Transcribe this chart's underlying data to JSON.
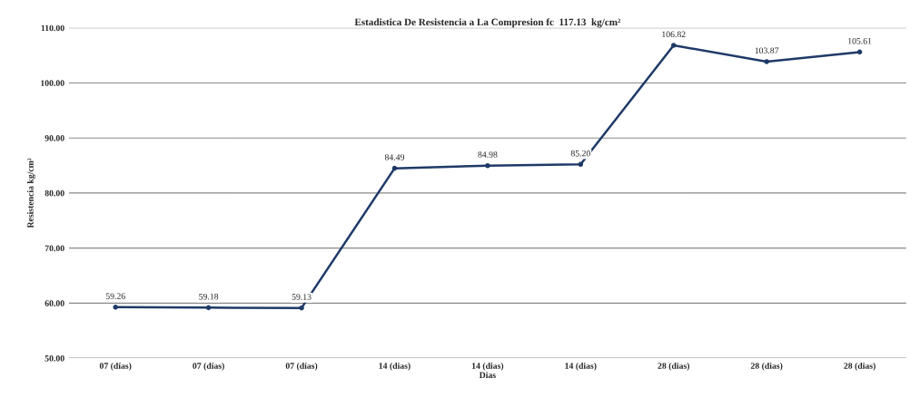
{
  "chart_data": {
    "type": "line",
    "title": "Estadistica De Resistencia a La Compresion fc  117.13  kg/cm²",
    "xlabel": "Dias",
    "ylabel": "Resistencia kg/cm²",
    "categories": [
      "07 (días)",
      "07 (días)",
      "07 (días)",
      "14 (dias)",
      "14 (dias)",
      "14 (dias)",
      "28 (dias)",
      "28 (dias)",
      "28 (dias)"
    ],
    "series": [
      {
        "color": "#1f3a68",
        "values": [
          59.26,
          59.18,
          59.13,
          84.49,
          84.98,
          85.2,
          106.82,
          103.87,
          105.61
        ]
      }
    ],
    "ylim": [
      50,
      110
    ],
    "yticks": [
      {
        "value": 50,
        "label": "50.00"
      },
      {
        "value": 60,
        "label": "60.00"
      },
      {
        "value": 70,
        "label": "70.00"
      },
      {
        "value": 80,
        "label": "80.00"
      },
      {
        "value": 90,
        "label": "90.00"
      },
      {
        "value": 100,
        "label": "100.00"
      },
      {
        "value": 110,
        "label": "110.00"
      }
    ],
    "value_labels": [
      "59.26",
      "59.18",
      "59.13",
      "84.49",
      "84.98",
      "85.20",
      "106.82",
      "103.87",
      "105.61"
    ],
    "grid": "y",
    "marker": "circle",
    "line_style": "solid",
    "legend": false
  }
}
